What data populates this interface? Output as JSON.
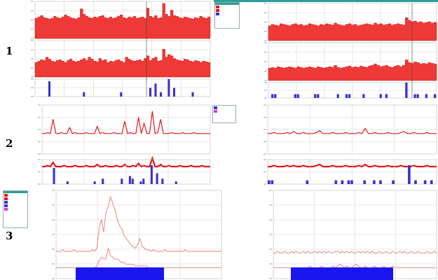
{
  "row_labels": [
    "1",
    "2",
    "3"
  ],
  "colors": {
    "red": "#e8161b",
    "red_fill": "#ee3a36",
    "pink": "#e8908c",
    "blue": "#3a2fd4",
    "blue_block": "#1b16ee",
    "grid": "#d4d4d4",
    "axis_text": "#8a8aa8",
    "legend_header": "#2aa198"
  },
  "legend_icons": [
    "red-swatch",
    "blue-swatch",
    "magenta-swatch"
  ],
  "chart_data": [
    {
      "type": "area",
      "panel": "row-1-left",
      "series": [
        {
          "values": [
            30,
            32,
            34,
            31,
            30,
            29,
            30,
            33,
            31,
            30,
            32,
            35,
            33,
            31,
            30,
            29,
            31,
            44,
            36,
            33,
            31,
            30,
            32,
            31,
            33,
            34,
            31,
            30,
            32,
            30,
            31,
            33,
            35,
            31,
            30,
            32,
            31,
            33,
            30,
            31,
            32,
            30,
            45,
            33,
            31,
            34,
            30,
            31,
            52,
            36,
            33,
            42,
            34,
            33,
            31,
            30,
            32,
            31,
            30,
            29,
            31,
            30,
            33,
            31,
            30,
            32
          ]
        },
        {
          "values": [
            22,
            24,
            26,
            25,
            30,
            27,
            24,
            23,
            25,
            26,
            24,
            22,
            25,
            27,
            24,
            23,
            24,
            26,
            28,
            25,
            30,
            27,
            24,
            23,
            28,
            25,
            26,
            22,
            24,
            23,
            25,
            26,
            24,
            22,
            30,
            27,
            25,
            24,
            25,
            26,
            24,
            28,
            32,
            25,
            28,
            30,
            24,
            25,
            42,
            30,
            34,
            32,
            28,
            26,
            25,
            24,
            27,
            26,
            24,
            23,
            25,
            24,
            22,
            24,
            23,
            22
          ]
        }
      ]
    },
    {
      "type": "bar",
      "panel": "row-1-left",
      "values": [
        0,
        0,
        0,
        0,
        0,
        7,
        0,
        0,
        0,
        0,
        0,
        0,
        0,
        0,
        0,
        0,
        0,
        0,
        2,
        0,
        0,
        0,
        0,
        0,
        0,
        0,
        0,
        0,
        0,
        0,
        0,
        0,
        2,
        0,
        0,
        0,
        0,
        0,
        0,
        0,
        0,
        0,
        0,
        4,
        0,
        6,
        0,
        2,
        0,
        0,
        8,
        0,
        4,
        0,
        0,
        0,
        0,
        0,
        0,
        2,
        0,
        0,
        0,
        0,
        0,
        0
      ]
    },
    {
      "type": "area",
      "panel": "row-1-right",
      "series": [
        {
          "values": [
            22,
            24,
            23,
            22,
            25,
            24,
            23,
            22,
            24,
            25,
            23,
            24,
            22,
            23,
            25,
            24,
            23,
            22,
            24,
            23,
            25,
            24,
            23,
            26,
            24,
            23,
            22,
            24,
            25,
            23,
            24,
            22,
            23,
            24,
            25,
            24,
            23,
            26,
            24,
            25,
            23,
            24,
            25,
            23,
            24,
            25,
            24,
            23,
            34,
            30,
            28,
            29,
            27,
            28,
            26,
            27,
            28,
            26,
            27
          ]
        },
        {
          "values": [
            18,
            19,
            18,
            20,
            19,
            18,
            19,
            20,
            19,
            18,
            20,
            19,
            18,
            19,
            20,
            19,
            18,
            20,
            19,
            18,
            19,
            20,
            19,
            22,
            19,
            18,
            19,
            20,
            21,
            19,
            20,
            19,
            21,
            20,
            19,
            21,
            22,
            24,
            22,
            20,
            21,
            22,
            20,
            19,
            21,
            22,
            20,
            22,
            30,
            26,
            25,
            27,
            26,
            24,
            25,
            24,
            26,
            25,
            24
          ]
        }
      ]
    },
    {
      "type": "bar",
      "panel": "row-1-right",
      "values": [
        0,
        1,
        1,
        0,
        0,
        0,
        0,
        0,
        0,
        1,
        1,
        0,
        0,
        0,
        0,
        0,
        1,
        1,
        0,
        0,
        0,
        0,
        0,
        0,
        1,
        0,
        0,
        1,
        1,
        0,
        0,
        0,
        0,
        1,
        0,
        0,
        0,
        0,
        0,
        1,
        0,
        1,
        0,
        0,
        0,
        0,
        0,
        0,
        4,
        0,
        0,
        1,
        1,
        0,
        0,
        1,
        0,
        0,
        1
      ]
    },
    {
      "type": "line",
      "panel": "row-2-left",
      "series": [
        {
          "values": [
            20,
            20,
            21,
            20,
            34,
            20,
            20,
            21,
            20,
            20,
            26,
            20,
            21,
            20,
            20,
            20,
            21,
            20,
            20,
            20,
            27,
            20,
            21,
            20,
            20,
            20,
            21,
            20,
            20,
            20,
            32,
            20,
            21,
            20,
            20,
            36,
            20,
            30,
            20,
            20,
            42,
            20,
            21,
            34,
            20,
            20,
            20,
            21,
            20,
            20,
            20,
            21,
            20,
            20,
            20,
            21,
            20,
            20,
            20,
            20,
            20,
            20
          ]
        },
        {
          "values": [
            10,
            10,
            11,
            10,
            14,
            10,
            10,
            10,
            11,
            10,
            10,
            10,
            11,
            10,
            10,
            10,
            11,
            10,
            10,
            10,
            12,
            10,
            10,
            11,
            10,
            10,
            10,
            11,
            10,
            10,
            12,
            10,
            10,
            11,
            10,
            13,
            10,
            11,
            10,
            10,
            18,
            10,
            10,
            12,
            10,
            10,
            11,
            10,
            10,
            10,
            11,
            10,
            10,
            10,
            11,
            10,
            10,
            10,
            11,
            10,
            10,
            10
          ]
        }
      ]
    },
    {
      "type": "bar",
      "panel": "row-2-left",
      "values": [
        0,
        0,
        0,
        0,
        6,
        0,
        0,
        0,
        0,
        1,
        0,
        0,
        0,
        0,
        0,
        0,
        0,
        0,
        0,
        1,
        0,
        0,
        2,
        0,
        0,
        0,
        0,
        0,
        0,
        2,
        0,
        0,
        3,
        2,
        0,
        0,
        1,
        2,
        0,
        0,
        7,
        0,
        4,
        0,
        2,
        0,
        0,
        0,
        0,
        1,
        0,
        0,
        0,
        0,
        0,
        0,
        0,
        0,
        0,
        0,
        0,
        0
      ]
    },
    {
      "type": "line",
      "panel": "row-2-right",
      "series": [
        {
          "values": [
            20,
            20,
            21,
            20,
            20,
            20,
            21,
            20,
            22,
            20,
            20,
            21,
            20,
            20,
            20,
            21,
            23,
            20,
            20,
            20,
            21,
            20,
            20,
            20,
            21,
            20,
            20,
            20,
            21,
            20,
            25,
            20,
            20,
            21,
            20,
            20,
            20,
            21,
            20,
            20,
            20,
            21,
            22,
            20,
            20,
            21,
            20,
            20,
            20,
            21,
            20,
            20,
            20
          ]
        },
        {
          "values": [
            10,
            10,
            11,
            10,
            10,
            10,
            11,
            10,
            11,
            10,
            10,
            11,
            10,
            10,
            10,
            11,
            12,
            10,
            10,
            10,
            11,
            10,
            10,
            10,
            11,
            10,
            10,
            10,
            11,
            10,
            12,
            10,
            10,
            11,
            10,
            10,
            10,
            11,
            10,
            10,
            10,
            11,
            10,
            10,
            10,
            11,
            10,
            10,
            10,
            11,
            10,
            10,
            10
          ]
        }
      ]
    },
    {
      "type": "bar",
      "panel": "row-2-right",
      "values": [
        1,
        1,
        0,
        0,
        0,
        0,
        0,
        0,
        0,
        0,
        0,
        0,
        1,
        0,
        0,
        0,
        0,
        0,
        0,
        0,
        0,
        1,
        0,
        1,
        0,
        1,
        1,
        0,
        0,
        0,
        1,
        0,
        0,
        1,
        0,
        1,
        0,
        0,
        0,
        1,
        0,
        0,
        0,
        0,
        5,
        0,
        1,
        0,
        0,
        1,
        0,
        1,
        0
      ]
    },
    {
      "type": "line",
      "panel": "row-3-left",
      "series": [
        {
          "values": [
            10,
            10,
            10,
            11,
            10,
            10,
            10,
            10,
            11,
            10,
            10,
            10,
            10,
            10,
            10,
            10,
            11,
            10,
            12,
            24,
            30,
            22,
            34,
            38,
            44,
            40,
            36,
            30,
            26,
            24,
            20,
            18,
            16,
            14,
            13,
            12,
            14,
            18,
            13,
            12,
            11,
            11,
            10,
            11,
            10,
            10,
            10,
            10,
            11,
            10,
            10,
            10,
            10,
            10,
            10,
            10,
            10,
            11,
            10,
            10,
            10,
            10,
            10,
            10,
            10,
            10,
            10,
            10,
            10,
            10,
            10,
            10,
            10,
            10
          ]
        },
        {
          "values": [
            3,
            3,
            3,
            3,
            3,
            3,
            3,
            3,
            3,
            3,
            3,
            3,
            3,
            3,
            3,
            3,
            3,
            3,
            4,
            7,
            9,
            8,
            8,
            14,
            10,
            9,
            8,
            8,
            7,
            6,
            6,
            5,
            5,
            5,
            5,
            4,
            4,
            4,
            4,
            4,
            4,
            3,
            3,
            3,
            3,
            3,
            3,
            3,
            3,
            3,
            3,
            3,
            3,
            3,
            3,
            3,
            3,
            3,
            3,
            3,
            3,
            3,
            3,
            3,
            3,
            3,
            3,
            3,
            3,
            3,
            3,
            3,
            3,
            3
          ]
        }
      ]
    },
    {
      "type": "line",
      "panel": "row-3-right",
      "series": [
        {
          "values": [
            10,
            10,
            11,
            10,
            10,
            11,
            10,
            10,
            11,
            10,
            11,
            10,
            10,
            11,
            10,
            11,
            10,
            10,
            11,
            10,
            11,
            10,
            11,
            10,
            11,
            10,
            10,
            11,
            11,
            10,
            11,
            10,
            11,
            10,
            11,
            10,
            10,
            11,
            10,
            11,
            10,
            11,
            10,
            11,
            10,
            10,
            11,
            10,
            10,
            11,
            10,
            10,
            11,
            10,
            10,
            11,
            10,
            11,
            10,
            10,
            11,
            10,
            10,
            11,
            10,
            10,
            10,
            11,
            10,
            10,
            11,
            10
          ]
        },
        {
          "values": [
            3,
            3,
            3,
            3,
            3,
            3,
            3,
            3,
            3,
            3,
            3,
            3,
            3,
            3,
            3,
            3,
            4,
            3,
            3,
            3,
            3,
            4,
            3,
            3,
            3,
            3,
            4,
            3,
            4,
            5,
            4,
            3,
            4,
            3,
            3,
            4,
            5,
            4,
            3,
            3,
            4,
            3,
            3,
            3,
            4,
            3,
            3,
            3,
            4,
            3,
            3,
            3,
            4,
            3,
            3,
            3,
            3,
            3,
            3,
            3,
            3,
            3,
            3,
            3,
            3,
            3,
            3,
            3,
            3,
            3,
            3,
            3
          ]
        }
      ]
    }
  ]
}
